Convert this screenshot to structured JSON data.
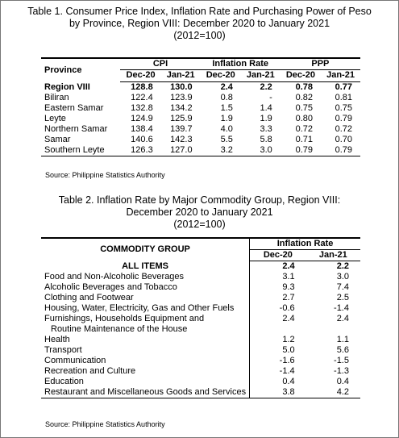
{
  "table1": {
    "title": [
      "Table 1. Consumer Price Index, Inflation Rate and Purchasing Power of Peso",
      "by Province, Region VIII: December 2020 to January 2021",
      "(2012=100)"
    ],
    "header": {
      "label": "Province",
      "groups": [
        "CPI",
        "Inflation Rate",
        "PPP"
      ],
      "periods": [
        "Dec-20",
        "Jan-21",
        "Dec-20",
        "Jan-21",
        "Dec-20",
        "Jan-21"
      ]
    },
    "rows": [
      [
        "Region VIII",
        "128.8",
        "130.0",
        "2.4",
        "2.2",
        "0.78",
        "0.77"
      ],
      [
        "Biliran",
        "122.4",
        "123.9",
        "0.8",
        "-",
        "0.82",
        "0.81"
      ],
      [
        "Eastern Samar",
        "132.8",
        "134.2",
        "1.5",
        "1.4",
        "0.75",
        "0.75"
      ],
      [
        "Leyte",
        "124.9",
        "125.9",
        "1.9",
        "1.9",
        "0.80",
        "0.79"
      ],
      [
        "Northern Samar",
        "138.4",
        "139.7",
        "4.0",
        "3.3",
        "0.72",
        "0.72"
      ],
      [
        "Samar",
        "140.6",
        "142.3",
        "5.5",
        "5.8",
        "0.71",
        "0.70"
      ],
      [
        "Southern Leyte",
        "126.3",
        "127.0",
        "3.2",
        "3.0",
        "0.79",
        "0.79"
      ]
    ],
    "source": "Source: Philippine Statistics Authority"
  },
  "table2": {
    "title": [
      "Table 2. Inflation Rate by Major Commodity Group, Region VIII:",
      "December 2020 to January 2021",
      "(2012=100)"
    ],
    "header": {
      "label": "COMMODITY GROUP",
      "group": "Inflation Rate",
      "periods": [
        "Dec-20",
        "Jan-21"
      ]
    },
    "rows": [
      {
        "label": [
          "ALL ITEMS"
        ],
        "values": [
          "2.4",
          "2.2"
        ]
      },
      {
        "label": [
          "Food and Non-Alcoholic Beverages"
        ],
        "values": [
          "3.1",
          "3.0"
        ]
      },
      {
        "label": [
          "Alcoholic Beverages and Tobacco"
        ],
        "values": [
          "9.3",
          "7.4"
        ]
      },
      {
        "label": [
          "Clothing and Footwear"
        ],
        "values": [
          "2.7",
          "2.5"
        ]
      },
      {
        "label": [
          "Housing, Water, Electricity, Gas and Other Fuels"
        ],
        "values": [
          "-0.6",
          "-1.4"
        ]
      },
      {
        "label": [
          "Furnishings, Households Equipment and",
          "Routine Maintenance of the House"
        ],
        "values": [
          "2.4",
          "2.4"
        ]
      },
      {
        "label": [
          "Health"
        ],
        "values": [
          "1.2",
          "1.1"
        ]
      },
      {
        "label": [
          "Transport"
        ],
        "values": [
          "5.0",
          "5.6"
        ]
      },
      {
        "label": [
          "Communication"
        ],
        "values": [
          "-1.6",
          "-1.5"
        ]
      },
      {
        "label": [
          "Recreation and Culture"
        ],
        "values": [
          "-1.4",
          "-1.3"
        ]
      },
      {
        "label": [
          "Education"
        ],
        "values": [
          "0.4",
          "0.4"
        ]
      },
      {
        "label": [
          "Restaurant and Miscellaneous Goods and Services"
        ],
        "values": [
          "3.8",
          "4.2"
        ]
      }
    ],
    "source": "Source: Philippine Statistics Authority"
  }
}
